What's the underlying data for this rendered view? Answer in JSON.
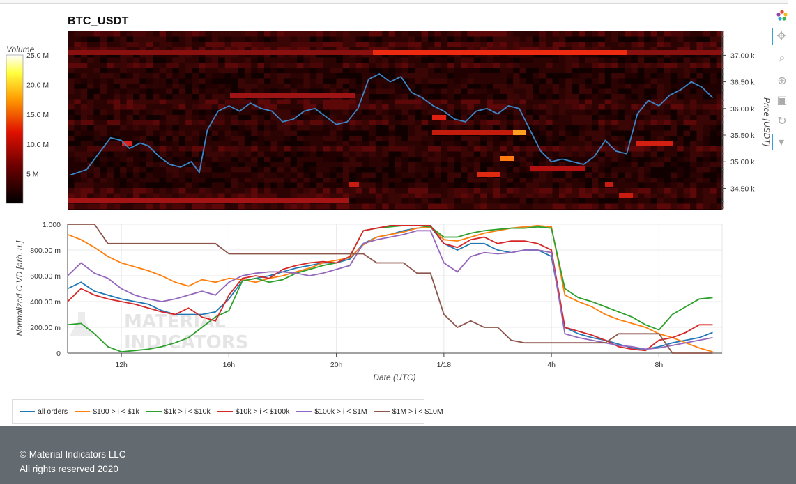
{
  "title": "BTC_USDT",
  "colorbar": {
    "title": "Volume",
    "ticks": [
      "25.0 M",
      "20.0 M",
      "15.0 M",
      "10.0 M",
      "5 M"
    ]
  },
  "heatmap": {
    "price_axis_title": "Price [USDT]",
    "price_ticks": [
      "37.00 k",
      "36.50 k",
      "36.00 k",
      "35.50 k",
      "35.00 k",
      "34.50 k"
    ]
  },
  "cvd": {
    "y_axis_title": "Normalized C VD [arb. u.]",
    "y_ticks": [
      "1.000",
      "800.00 m",
      "600.00 m",
      "400.00 m",
      "200.00 m",
      "0"
    ],
    "x_axis_title": "Date (UTC)",
    "x_ticks": [
      "12h",
      "16h",
      "20h",
      "1/18",
      "4h",
      "8h"
    ]
  },
  "watermark": [
    "MATERIAL",
    "INDICATORS"
  ],
  "legend": [
    {
      "label": "all orders",
      "color": "#1f77b4"
    },
    {
      "label": "$100 > i < $1k",
      "color": "#ff7f0e"
    },
    {
      "label": "$1k > i < $10k",
      "color": "#2ca02c"
    },
    {
      "label": "$10k > i < $100k",
      "color": "#d62728"
    },
    {
      "label": "$100k > i < $1M",
      "color": "#9467bd"
    },
    {
      "label": "$1M > i < $10M",
      "color": "#8c564b"
    }
  ],
  "footer": {
    "copyright": "© Material Indicators LLC",
    "rights": "All rights reserved 2020"
  },
  "chart_data": [
    {
      "type": "heatmap",
      "title": "BTC_USDT",
      "ylabel": "Price [USDT]",
      "ylim": [
        34100,
        37450
      ],
      "colorscale_max": 25000000,
      "price_series": {
        "name": "price",
        "color": "#3a86c8",
        "hours": [
          10.1,
          10.4,
          10.7,
          11.0,
          11.3,
          11.6,
          12.0,
          12.3,
          12.7,
          13.0,
          13.4,
          13.8,
          14.2,
          14.6,
          14.9,
          15.2,
          15.6,
          16.0,
          16.4,
          16.8,
          17.2,
          17.6,
          18.0,
          18.4,
          18.8,
          19.2,
          19.6,
          20.0,
          20.4,
          20.8,
          21.2,
          21.6,
          22.0,
          22.4,
          22.8,
          23.2,
          23.6,
          24.0,
          24.4,
          24.8,
          25.2,
          25.6,
          26.0,
          26.4,
          26.8,
          27.2,
          27.6,
          28.0,
          28.4,
          28.8,
          29.2,
          29.6,
          30.0,
          30.4,
          30.8,
          31.2,
          31.6,
          32.0,
          32.4,
          32.8,
          33.2,
          33.6,
          34.0
        ],
        "values": [
          34.75,
          34.8,
          34.85,
          35.05,
          35.25,
          35.45,
          35.4,
          35.25,
          35.35,
          35.3,
          35.1,
          34.95,
          34.9,
          35.0,
          34.8,
          35.6,
          35.95,
          36.05,
          35.95,
          36.1,
          36.0,
          35.95,
          35.75,
          35.8,
          35.95,
          36.0,
          35.85,
          35.7,
          35.75,
          36.0,
          36.55,
          36.65,
          36.5,
          36.6,
          36.3,
          36.2,
          36.05,
          35.95,
          35.8,
          35.75,
          35.95,
          36.0,
          35.9,
          36.05,
          36.0,
          35.6,
          35.2,
          35.0,
          35.05,
          35.0,
          34.95,
          35.1,
          35.4,
          35.2,
          35.15,
          35.9,
          36.15,
          36.05,
          36.25,
          36.35,
          36.5,
          36.4,
          36.2
        ]
      }
    },
    {
      "type": "line",
      "xlabel": "Date (UTC)",
      "ylabel": "Normalized C VD [arb. u.]",
      "ylim": [
        0,
        1
      ],
      "x_hours": [
        10.0,
        10.5,
        11.0,
        11.5,
        12.0,
        12.5,
        13.0,
        13.5,
        14.0,
        14.5,
        15.0,
        15.5,
        16.0,
        16.5,
        17.0,
        17.5,
        18.0,
        18.5,
        19.0,
        19.5,
        20.0,
        20.5,
        21.0,
        21.5,
        22.0,
        22.5,
        23.0,
        23.5,
        24.0,
        24.5,
        25.0,
        25.5,
        26.0,
        26.5,
        27.0,
        27.5,
        28.0,
        28.5,
        29.0,
        29.5,
        30.0,
        30.5,
        31.0,
        31.5,
        32.0,
        32.5,
        33.0,
        33.5,
        34.0
      ],
      "series": [
        {
          "name": "all orders",
          "values": [
            0.5,
            0.55,
            0.48,
            0.45,
            0.42,
            0.4,
            0.38,
            0.33,
            0.3,
            0.3,
            0.3,
            0.32,
            0.42,
            0.56,
            0.58,
            0.6,
            0.63,
            0.66,
            0.68,
            0.7,
            0.7,
            0.73,
            0.85,
            0.9,
            0.92,
            0.95,
            0.97,
            0.98,
            0.85,
            0.8,
            0.85,
            0.85,
            0.8,
            0.78,
            0.8,
            0.8,
            0.75,
            0.2,
            0.15,
            0.12,
            0.1,
            0.07,
            0.04,
            0.03,
            0.05,
            0.08,
            0.1,
            0.12,
            0.16
          ]
        },
        {
          "name": "$100 > i < $1k",
          "values": [
            0.92,
            0.88,
            0.82,
            0.75,
            0.7,
            0.67,
            0.64,
            0.6,
            0.55,
            0.52,
            0.57,
            0.55,
            0.58,
            0.57,
            0.55,
            0.58,
            0.6,
            0.63,
            0.66,
            0.7,
            0.72,
            0.74,
            0.84,
            0.9,
            0.92,
            0.94,
            0.97,
            0.98,
            0.88,
            0.87,
            0.9,
            0.93,
            0.95,
            0.97,
            0.98,
            0.99,
            0.98,
            0.45,
            0.4,
            0.36,
            0.3,
            0.26,
            0.23,
            0.2,
            0.15,
            0.12,
            0.08,
            0.04,
            0.01
          ]
        },
        {
          "name": "$1k > i < $10k",
          "values": [
            0.22,
            0.23,
            0.15,
            0.05,
            0.01,
            0.02,
            0.03,
            0.05,
            0.08,
            0.12,
            0.2,
            0.28,
            0.33,
            0.56,
            0.58,
            0.55,
            0.57,
            0.62,
            0.65,
            0.68,
            0.7,
            0.75,
            0.95,
            0.97,
            0.98,
            0.99,
            0.99,
            0.98,
            0.9,
            0.9,
            0.93,
            0.95,
            0.96,
            0.97,
            0.97,
            0.98,
            0.97,
            0.5,
            0.43,
            0.4,
            0.36,
            0.32,
            0.28,
            0.22,
            0.18,
            0.3,
            0.36,
            0.42,
            0.43
          ]
        },
        {
          "name": "$10k > i < $100k",
          "values": [
            0.4,
            0.5,
            0.45,
            0.42,
            0.4,
            0.38,
            0.35,
            0.32,
            0.3,
            0.35,
            0.28,
            0.25,
            0.45,
            0.58,
            0.6,
            0.58,
            0.65,
            0.68,
            0.7,
            0.71,
            0.7,
            0.75,
            0.95,
            0.97,
            0.99,
            0.99,
            0.99,
            0.99,
            0.85,
            0.82,
            0.88,
            0.9,
            0.85,
            0.87,
            0.87,
            0.85,
            0.8,
            0.2,
            0.17,
            0.14,
            0.1,
            0.05,
            0.03,
            0.02,
            0.1,
            0.12,
            0.16,
            0.22,
            0.22
          ]
        },
        {
          "name": "$100k > i < $1M",
          "values": [
            0.6,
            0.7,
            0.62,
            0.58,
            0.5,
            0.45,
            0.42,
            0.4,
            0.42,
            0.45,
            0.48,
            0.45,
            0.55,
            0.6,
            0.62,
            0.63,
            0.63,
            0.62,
            0.6,
            0.62,
            0.65,
            0.68,
            0.85,
            0.88,
            0.9,
            0.92,
            0.95,
            0.95,
            0.7,
            0.63,
            0.75,
            0.78,
            0.77,
            0.78,
            0.8,
            0.8,
            0.78,
            0.15,
            0.12,
            0.1,
            0.08,
            0.06,
            0.05,
            0.03,
            0.04,
            0.06,
            0.08,
            0.1,
            0.12
          ]
        },
        {
          "name": "$1M > i < $10M",
          "values": [
            1.0,
            1.0,
            1.0,
            0.85,
            0.85,
            0.85,
            0.85,
            0.85,
            0.85,
            0.85,
            0.85,
            0.85,
            0.77,
            0.77,
            0.77,
            0.77,
            0.77,
            0.77,
            0.77,
            0.77,
            0.77,
            0.77,
            0.77,
            0.7,
            0.7,
            0.7,
            0.62,
            0.62,
            0.3,
            0.2,
            0.25,
            0.2,
            0.2,
            0.1,
            0.08,
            0.08,
            0.08,
            0.08,
            0.08,
            0.08,
            0.08,
            0.15,
            0.15,
            0.15,
            0.15,
            0.0,
            0.0,
            0.0,
            0.0
          ]
        }
      ]
    }
  ]
}
